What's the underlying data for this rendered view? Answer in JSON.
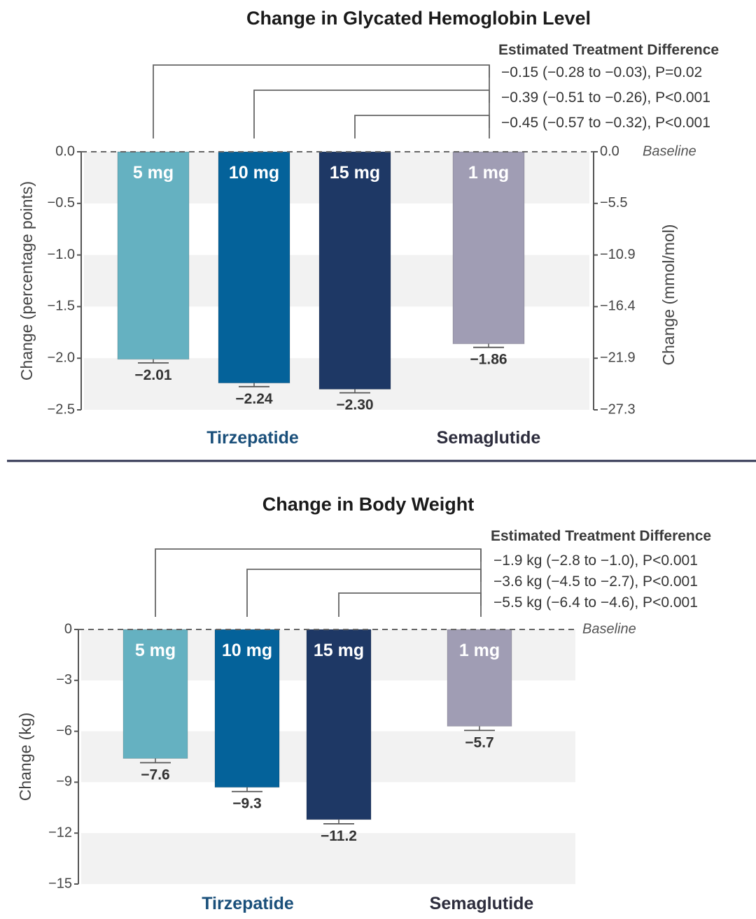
{
  "chart_data": [
    {
      "type": "bar",
      "title": "Change in Glycated Hemoglobin Level",
      "ylabel": "Change (percentage points)",
      "ylabel_right": "Change (mmol/mol)",
      "ylim": [
        -2.5,
        0.0
      ],
      "yticks": [
        "0.0",
        "−0.5",
        "−1.0",
        "−1.5",
        "−2.0",
        "−2.5"
      ],
      "ytick_values": [
        0,
        -0.5,
        -1.0,
        -1.5,
        -2.0,
        -2.5
      ],
      "yticks_right": [
        "0.0",
        "−5.5",
        "−10.9",
        "−16.4",
        "−21.9",
        "−27.3"
      ],
      "baseline_label": "Baseline",
      "grid": "alternating horizontal bands",
      "categories": [
        "5 mg",
        "10 mg",
        "15 mg",
        "1 mg"
      ],
      "groups": [
        {
          "name": "Tirzepatide",
          "members": [
            0,
            1,
            2
          ],
          "color": "#1a4f7a"
        },
        {
          "name": "Semaglutide",
          "members": [
            3
          ],
          "color": "#2d2d3d"
        }
      ],
      "values": [
        -2.01,
        -2.24,
        -2.3,
        -1.86
      ],
      "value_labels": [
        "−2.01",
        "−2.24",
        "−2.30",
        "−1.86"
      ],
      "error_half_width": [
        0.035,
        0.035,
        0.035,
        0.035
      ],
      "colors": [
        "#65b1c1",
        "#04629a",
        "#1e3865",
        "#a09db4"
      ],
      "comparison_header": "Estimated Treatment Difference",
      "comparisons": [
        {
          "from": 0,
          "to": 3,
          "text": "−0.15 (−0.28 to −0.03), P=0.02"
        },
        {
          "from": 1,
          "to": 3,
          "text": "−0.39 (−0.51 to −0.26), P<0.001"
        },
        {
          "from": 2,
          "to": 3,
          "text": "−0.45 (−0.57 to −0.32), P<0.001"
        }
      ]
    },
    {
      "type": "bar",
      "title": "Change in Body Weight",
      "ylabel": "Change (kg)",
      "ylim": [
        -15,
        0
      ],
      "yticks": [
        "0",
        "−3",
        "−6",
        "−9",
        "−12",
        "−15"
      ],
      "ytick_values": [
        0,
        -3,
        -6,
        -9,
        -12,
        -15
      ],
      "baseline_label": "Baseline",
      "grid": "alternating horizontal bands",
      "categories": [
        "5 mg",
        "10 mg",
        "15 mg",
        "1 mg"
      ],
      "groups": [
        {
          "name": "Tirzepatide",
          "members": [
            0,
            1,
            2
          ],
          "color": "#1a4f7a"
        },
        {
          "name": "Semaglutide",
          "members": [
            3
          ],
          "color": "#2d2d3d"
        }
      ],
      "values": [
        -7.6,
        -9.3,
        -11.2,
        -5.7
      ],
      "value_labels": [
        "−7.6",
        "−9.3",
        "−11.2",
        "−5.7"
      ],
      "error_half_width": [
        0.25,
        0.25,
        0.25,
        0.25
      ],
      "colors": [
        "#65b1c1",
        "#04629a",
        "#1e3865",
        "#a09db4"
      ],
      "comparison_header": "Estimated Treatment Difference",
      "comparisons": [
        {
          "from": 0,
          "to": 3,
          "text": "−1.9 kg (−2.8 to −1.0), P<0.001"
        },
        {
          "from": 1,
          "to": 3,
          "text": "−3.6 kg (−4.5 to −2.7), P<0.001"
        },
        {
          "from": 2,
          "to": 3,
          "text": "−5.5 kg (−6.4 to −4.6), P<0.001"
        }
      ]
    }
  ],
  "colors": {
    "band": "#f2f2f2",
    "axis": "#555555",
    "divider": "#2f3350"
  }
}
